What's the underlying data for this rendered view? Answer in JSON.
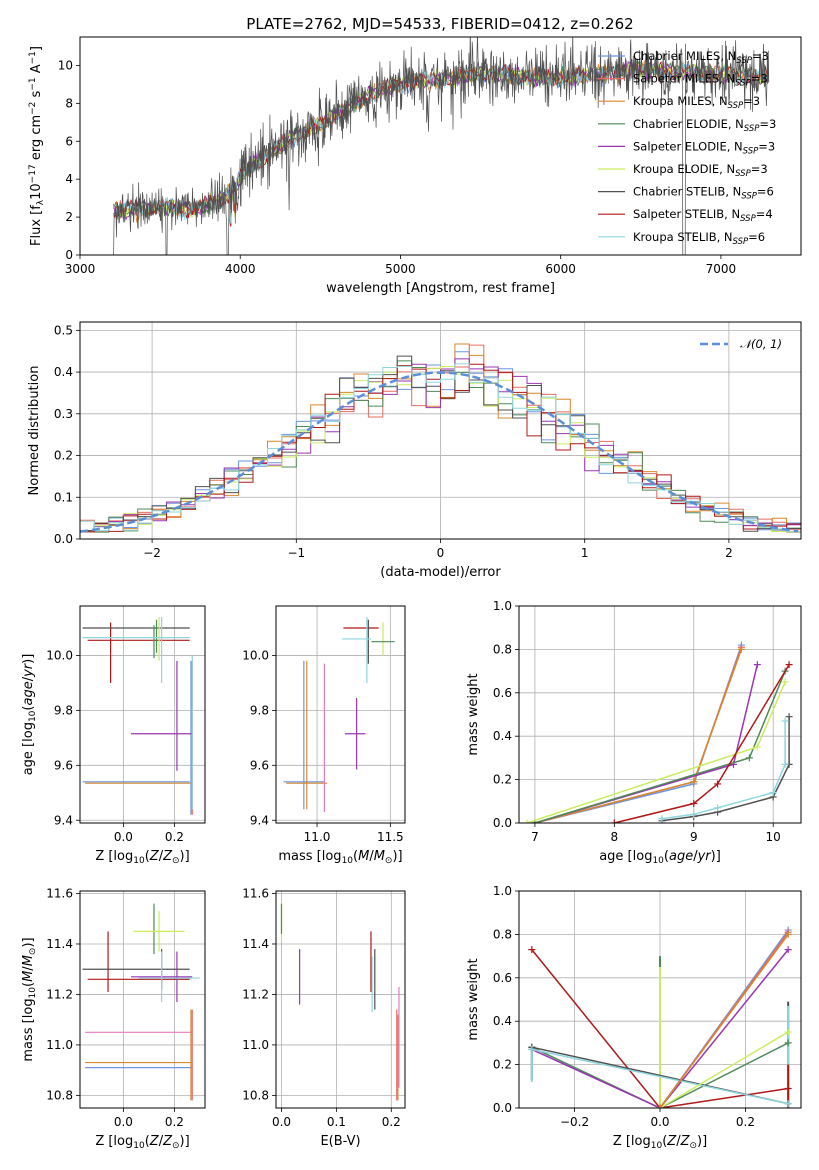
{
  "title": "PLATE=2762, MJD=54533, FIBERID=0412, z=0.262",
  "colors": {
    "Chabrier MILES": "#6b95de",
    "Salpeter MILES": "#e86b61",
    "Kroupa MILES": "#d8872d",
    "Chabrier ELODIE": "#4f8a58",
    "Salpeter ELODIE": "#9a35b3",
    "Kroupa ELODIE": "#c9ec5e",
    "Chabrier STELIB": "#505050",
    "Salpeter STELIB": "#b01818",
    "Kroupa STELIB": "#8dd6de",
    "extra": "#e87ac6",
    "gaussian": "#5b8fd8"
  },
  "chart_data": [
    {
      "id": "spectrum",
      "type": "line",
      "xlabel": "wavelength [Angstrom, rest frame]",
      "ylabel": "Flux [f_λ10^-17 erg cm^-2 s^-1 A^-1]",
      "xlim": [
        3000,
        7500
      ],
      "ylim": [
        0,
        11.5
      ],
      "xticks": [
        3000,
        4000,
        5000,
        6000,
        7000
      ],
      "yticks": [
        0,
        2,
        4,
        6,
        8,
        10
      ],
      "grid": false,
      "legend_position": "right",
      "legend": [
        {
          "label": "Chabrier MILES, N_SSP=3",
          "model": "Chabrier MILES"
        },
        {
          "label": "Salpeter MILES, N_SSP=3",
          "model": "Salpeter MILES"
        },
        {
          "label": "Kroupa MILES, N_SSP=3",
          "model": "Kroupa MILES"
        },
        {
          "label": "Chabrier ELODIE, N_SSP=3",
          "model": "Chabrier ELODIE"
        },
        {
          "label": "Salpeter ELODIE, N_SSP=3",
          "model": "Salpeter ELODIE"
        },
        {
          "label": "Kroupa ELODIE, N_SSP=3",
          "model": "Kroupa ELODIE"
        },
        {
          "label": "Chabrier STELIB, N_SSP=6",
          "model": "Chabrier STELIB"
        },
        {
          "label": "Salpeter STELIB, N_SSP=4",
          "model": "Salpeter STELIB"
        },
        {
          "label": "Kroupa STELIB, N_SSP=6",
          "model": "Kroupa STELIB"
        }
      ],
      "continuum": [
        [
          3210,
          2.3
        ],
        [
          3400,
          2.5
        ],
        [
          3550,
          2.5
        ],
        [
          3700,
          2.4
        ],
        [
          3850,
          2.8
        ],
        [
          3950,
          3.4
        ],
        [
          4050,
          4.6
        ],
        [
          4200,
          5.4
        ],
        [
          4350,
          6.3
        ],
        [
          4500,
          6.9
        ],
        [
          4700,
          7.9
        ],
        [
          4900,
          8.8
        ],
        [
          5100,
          9.2
        ],
        [
          5300,
          9.3
        ],
        [
          5500,
          9.6
        ],
        [
          5700,
          9.5
        ],
        [
          5900,
          9.3
        ],
        [
          6100,
          9.4
        ],
        [
          6300,
          9.6
        ],
        [
          6500,
          9.8
        ],
        [
          6700,
          9.7
        ],
        [
          6900,
          9.6
        ],
        [
          7100,
          9.5
        ],
        [
          7300,
          9.3
        ]
      ]
    },
    {
      "id": "residuals",
      "type": "line",
      "xlabel": "(data-model)/error",
      "ylabel": "Normed distribution",
      "xlim": [
        -2.5,
        2.5
      ],
      "ylim": [
        0,
        0.52
      ],
      "xticks": [
        -2,
        -1,
        0,
        1,
        2
      ],
      "yticks": [
        0.0,
        0.1,
        0.2,
        0.3,
        0.4,
        0.5
      ],
      "grid": true,
      "legend_position": "top-right",
      "legend_label": "N(0,1)"
    },
    {
      "id": "age_vs_Z",
      "type": "scatter",
      "xlabel": "Z [log10(Z/Z⊙)]",
      "ylabel": "age  [log10(age/yr)]",
      "xlim": [
        -0.17,
        0.32
      ],
      "ylim": [
        9.39,
        10.18
      ],
      "xticks": [
        0.0,
        0.2
      ],
      "yticks": [
        9.4,
        9.6,
        9.8,
        10.0
      ],
      "grid": true,
      "points": [
        {
          "m": "Chabrier MILES",
          "x": 0.05,
          "xerr": 0.21,
          "y": 9.54,
          "yerr": 0.0
        },
        {
          "m": "Kroupa MILES",
          "x": 0.06,
          "xerr": 0.21,
          "y": 9.535,
          "yerr": 0.0
        },
        {
          "m": "Salpeter MILES",
          "x": 0.27,
          "xerr": 0.0,
          "y": 9.7,
          "yerr": 0.28
        },
        {
          "m": "Chabrier MILES",
          "x": 0.265,
          "xerr": 0.0,
          "y": 9.7,
          "yerr": 0.28
        },
        {
          "m": "Salpeter ELODIE",
          "x": 0.21,
          "xerr": 0.0,
          "y": 9.78,
          "yerr": 0.2
        },
        {
          "m": "Salpeter ELODIE",
          "x": 0.15,
          "xerr": 0.12,
          "y": 9.715,
          "yerr": 0.0
        },
        {
          "m": "Kroupa STELIB",
          "x": 0.27,
          "xerr": 0.0,
          "y": 9.72,
          "yerr": 0.28
        },
        {
          "m": "Salpeter STELIB",
          "x": -0.05,
          "xerr": 0.0,
          "y": 10.01,
          "yerr": 0.11
        },
        {
          "m": "Salpeter STELIB",
          "x": 0.06,
          "xerr": 0.2,
          "y": 10.055,
          "yerr": 0.0
        },
        {
          "m": "Chabrier STELIB",
          "x": 0.05,
          "xerr": 0.21,
          "y": 10.1,
          "yerr": 0.0
        },
        {
          "m": "Chabrier ELODIE",
          "x": 0.12,
          "xerr": 0.0,
          "y": 10.05,
          "yerr": 0.06
        },
        {
          "m": "Kroupa ELODIE",
          "x": 0.14,
          "xerr": 0.0,
          "y": 10.06,
          "yerr": 0.08
        },
        {
          "m": "Kroupa STELIB",
          "x": 0.15,
          "xerr": 0.0,
          "y": 10.02,
          "yerr": 0.12
        },
        {
          "m": "Chabrier ELODIE",
          "x": 0.13,
          "xerr": 0.0,
          "y": 10.07,
          "yerr": 0.06
        },
        {
          "m": "Kroupa STELIB",
          "x": 0.05,
          "xerr": 0.21,
          "y": 10.065,
          "yerr": 0.0
        }
      ]
    },
    {
      "id": "age_vs_mass",
      "type": "scatter",
      "xlabel": "mass [log10(M/M⊙)]",
      "ylabel": "",
      "xlim": [
        10.72,
        11.6
      ],
      "ylim": [
        9.39,
        10.18
      ],
      "xticks": [
        11.0,
        11.5
      ],
      "yticks": [
        9.4,
        9.6,
        9.8,
        10.0
      ],
      "grid": true,
      "points": [
        {
          "m": "Chabrier MILES",
          "x": 10.91,
          "xerr": 0.14,
          "y": 9.54,
          "yerr": 0.0
        },
        {
          "m": "Chabrier MILES",
          "x": 10.91,
          "xerr": 0.0,
          "y": 9.71,
          "yerr": 0.27
        },
        {
          "m": "Kroupa MILES",
          "x": 10.93,
          "xerr": 0.0,
          "y": 9.71,
          "yerr": 0.27
        },
        {
          "m": "Kroupa MILES",
          "x": 10.93,
          "xerr": 0.14,
          "y": 9.535,
          "yerr": 0.0
        },
        {
          "m": "extra",
          "x": 11.05,
          "xerr": 0.0,
          "y": 9.7,
          "yerr": 0.27
        },
        {
          "m": "Salpeter ELODIE",
          "x": 11.26,
          "xerr": 0.07,
          "y": 9.715,
          "yerr": 0.0
        },
        {
          "m": "Salpeter ELODIE",
          "x": 11.27,
          "xerr": 0.0,
          "y": 9.715,
          "yerr": 0.13
        },
        {
          "m": "Salpeter STELIB",
          "x": 11.3,
          "xerr": 0.12,
          "y": 10.1,
          "yerr": 0.0
        },
        {
          "m": "Chabrier STELIB",
          "x": 11.35,
          "xerr": 0.0,
          "y": 10.05,
          "yerr": 0.08
        },
        {
          "m": "Kroupa STELIB",
          "x": 11.27,
          "xerr": 0.1,
          "y": 10.06,
          "yerr": 0.0
        },
        {
          "m": "Kroupa ELODIE",
          "x": 11.45,
          "xerr": 0.0,
          "y": 10.06,
          "yerr": 0.06
        },
        {
          "m": "Chabrier ELODIE",
          "x": 11.45,
          "xerr": 0.08,
          "y": 10.05,
          "yerr": 0.0
        },
        {
          "m": "Kroupa STELIB",
          "x": 11.34,
          "xerr": 0.0,
          "y": 10.02,
          "yerr": 0.12
        }
      ]
    },
    {
      "id": "massweight_vs_age",
      "type": "line",
      "xlabel": "age  [log10(age/yr)]",
      "ylabel": "mass weight",
      "xlim": [
        6.8,
        10.35
      ],
      "ylim": [
        0,
        1.0
      ],
      "xticks": [
        7,
        8,
        9,
        10
      ],
      "yticks": [
        0.0,
        0.2,
        0.4,
        0.6,
        0.8,
        1.0
      ],
      "grid": true,
      "series": [
        {
          "m": "Chabrier MILES",
          "x": [
            7.0,
            9.0,
            9.6
          ],
          "y": [
            0.0,
            0.18,
            0.82
          ]
        },
        {
          "m": "Salpeter MILES",
          "x": [
            7.0,
            9.0,
            9.6
          ],
          "y": [
            0.0,
            0.19,
            0.81
          ]
        },
        {
          "m": "Kroupa MILES",
          "x": [
            7.0,
            9.0,
            9.6
          ],
          "y": [
            0.0,
            0.19,
            0.8
          ]
        },
        {
          "m": "Salpeter ELODIE",
          "x": [
            7.0,
            9.5,
            9.8
          ],
          "y": [
            0.0,
            0.27,
            0.73
          ]
        },
        {
          "m": "Chabrier ELODIE",
          "x": [
            7.0,
            9.7,
            10.15
          ],
          "y": [
            0.0,
            0.3,
            0.7
          ]
        },
        {
          "m": "Kroupa ELODIE",
          "x": [
            6.9,
            9.8,
            10.15
          ],
          "y": [
            0.0,
            0.35,
            0.65
          ]
        },
        {
          "m": "Salpeter STELIB",
          "x": [
            8.0,
            9.0,
            9.3,
            10.2
          ],
          "y": [
            0.0,
            0.09,
            0.18,
            0.73
          ]
        },
        {
          "m": "Chabrier STELIB",
          "x": [
            8.6,
            9.0,
            9.3,
            10.0,
            10.2,
            10.2
          ],
          "y": [
            0.01,
            0.03,
            0.05,
            0.12,
            0.27,
            0.49
          ]
        },
        {
          "m": "Kroupa STELIB",
          "x": [
            8.6,
            9.0,
            9.3,
            10.0,
            10.15,
            10.15
          ],
          "y": [
            0.02,
            0.04,
            0.07,
            0.14,
            0.27,
            0.47
          ]
        }
      ]
    },
    {
      "id": "mass_vs_Z",
      "type": "scatter",
      "xlabel": "Z [log10(Z/Z⊙)]",
      "ylabel": "mass [log10(M/M⊙)]",
      "xlim": [
        -0.17,
        0.32
      ],
      "ylim": [
        10.75,
        11.61
      ],
      "xticks": [
        0.0,
        0.2
      ],
      "yticks": [
        10.8,
        11.0,
        11.2,
        11.4,
        11.6
      ],
      "grid": true,
      "points": [
        {
          "m": "Chabrier MILES",
          "x": 0.06,
          "xerr": 0.21,
          "y": 10.91,
          "yerr": 0.0
        },
        {
          "m": "Kroupa MILES",
          "x": 0.06,
          "xerr": 0.21,
          "y": 10.93,
          "yerr": 0.0
        },
        {
          "m": "extra",
          "x": 0.06,
          "xerr": 0.21,
          "y": 11.05,
          "yerr": 0.0
        },
        {
          "m": "Kroupa MILES",
          "x": 0.265,
          "xerr": 0.0,
          "y": 10.96,
          "yerr": 0.18
        },
        {
          "m": "Salpeter MILES",
          "x": 0.27,
          "xerr": 0.0,
          "y": 10.96,
          "yerr": 0.18
        },
        {
          "m": "Salpeter STELIB",
          "x": -0.06,
          "xerr": 0.0,
          "y": 11.33,
          "yerr": 0.12
        },
        {
          "m": "Salpeter STELIB",
          "x": 0.06,
          "xerr": 0.2,
          "y": 11.26,
          "yerr": 0.0
        },
        {
          "m": "Chabrier STELIB",
          "x": 0.05,
          "xerr": 0.21,
          "y": 11.3,
          "yerr": 0.0
        },
        {
          "m": "Salpeter ELODIE",
          "x": 0.15,
          "xerr": 0.12,
          "y": 11.27,
          "yerr": 0.0
        },
        {
          "m": "Salpeter ELODIE",
          "x": 0.21,
          "xerr": 0.0,
          "y": 11.27,
          "yerr": 0.1
        },
        {
          "m": "Chabrier STELIB",
          "x": 0.15,
          "xerr": 0.0,
          "y": 11.3,
          "yerr": 0.08
        },
        {
          "m": "Kroupa STELIB",
          "x": 0.15,
          "xerr": 0.0,
          "y": 11.27,
          "yerr": 0.1
        },
        {
          "m": "Chabrier ELODIE",
          "x": 0.12,
          "xerr": 0.0,
          "y": 11.46,
          "yerr": 0.1
        },
        {
          "m": "Kroupa ELODIE",
          "x": 0.14,
          "xerr": 0.1,
          "y": 11.45,
          "yerr": 0.0
        },
        {
          "m": "Kroupa ELODIE",
          "x": 0.14,
          "xerr": 0.0,
          "y": 11.45,
          "yerr": 0.08
        },
        {
          "m": "Kroupa STELIB",
          "x": 0.18,
          "xerr": 0.12,
          "y": 11.265,
          "yerr": 0.0
        }
      ]
    },
    {
      "id": "mass_vs_ebv",
      "type": "scatter",
      "xlabel": "E(B-V)",
      "ylabel": "",
      "xlim": [
        -0.01,
        0.225
      ],
      "ylim": [
        10.75,
        11.61
      ],
      "xticks": [
        0.0,
        0.1,
        0.2
      ],
      "yticks": [
        10.8,
        11.0,
        11.2,
        11.4,
        11.6
      ],
      "grid": true,
      "points": [
        {
          "m": "Kroupa ELODIE",
          "x": 0.0,
          "xerr": 0.0,
          "y": 11.49,
          "yerr": 0.08
        },
        {
          "m": "Chabrier ELODIE",
          "x": 0.0,
          "xerr": 0.0,
          "y": 11.5,
          "yerr": 0.06
        },
        {
          "m": "Salpeter ELODIE",
          "x": 0.033,
          "xerr": 0.0,
          "y": 11.27,
          "yerr": 0.11
        },
        {
          "m": "Salpeter STELIB",
          "x": 0.163,
          "xerr": 0.0,
          "y": 11.33,
          "yerr": 0.12
        },
        {
          "m": "Kroupa STELIB",
          "x": 0.165,
          "xerr": 0.0,
          "y": 11.24,
          "yerr": 0.11
        },
        {
          "m": "Chabrier STELIB",
          "x": 0.17,
          "xerr": 0.0,
          "y": 11.26,
          "yerr": 0.12
        },
        {
          "m": "Salpeter MILES",
          "x": 0.21,
          "xerr": 0.0,
          "y": 10.96,
          "yerr": 0.18
        },
        {
          "m": "Kroupa MILES",
          "x": 0.212,
          "xerr": 0.0,
          "y": 10.95,
          "yerr": 0.17
        },
        {
          "m": "extra",
          "x": 0.214,
          "xerr": 0.0,
          "y": 11.03,
          "yerr": 0.2
        }
      ]
    },
    {
      "id": "massweight_vs_Z",
      "type": "line",
      "xlabel": "Z [log10(Z/Z⊙)]",
      "ylabel": "mass weight",
      "xlim": [
        -0.33,
        0.33
      ],
      "ylim": [
        0,
        1.0
      ],
      "xticks": [
        -0.2,
        0.0,
        0.2
      ],
      "yticks": [
        0.0,
        0.2,
        0.4,
        0.6,
        0.8,
        1.0
      ],
      "grid": true,
      "series": [
        {
          "m": "Salpeter STELIB",
          "x": [
            -0.3,
            0.0,
            0.3
          ],
          "y": [
            0.73,
            0.0,
            0.09
          ]
        },
        {
          "m": "Chabrier ELODIE",
          "x": [
            -0.3,
            0.0,
            0.3
          ],
          "y": [
            0.28,
            0.0,
            0.3
          ]
        },
        {
          "m": "Salpeter ELODIE",
          "x": [
            -0.3,
            0.0,
            0.3
          ],
          "y": [
            0.27,
            0.0,
            0.73
          ]
        },
        {
          "m": "Chabrier STELIB",
          "x": [
            -0.3,
            0.3
          ],
          "y": [
            0.28,
            0.02
          ]
        },
        {
          "m": "Kroupa STELIB",
          "x": [
            -0.3,
            0.3
          ],
          "y": [
            0.27,
            0.02
          ]
        },
        {
          "m": "Kroupa ELODIE",
          "x": [
            0.0,
            0.3
          ],
          "y": [
            0.0,
            0.35
          ]
        },
        {
          "m": "Chabrier MILES",
          "x": [
            0.0,
            0.3
          ],
          "y": [
            0.0,
            0.82
          ]
        },
        {
          "m": "Salpeter MILES",
          "x": [
            0.0,
            0.3
          ],
          "y": [
            0.0,
            0.81
          ]
        },
        {
          "m": "Kroupa MILES",
          "x": [
            0.0,
            0.3
          ],
          "y": [
            0.0,
            0.8
          ]
        }
      ],
      "verticals": [
        {
          "m": "Chabrier STELIB",
          "x": -0.3,
          "y": [
            0.13,
            0.28
          ]
        },
        {
          "m": "Kroupa STELIB",
          "x": -0.3,
          "y": [
            0.12,
            0.27
          ]
        },
        {
          "m": "Chabrier ELODIE",
          "x": 0.0,
          "y": [
            0.0,
            0.7
          ]
        },
        {
          "m": "Kroupa ELODIE",
          "x": 0.0,
          "y": [
            0.0,
            0.65
          ]
        },
        {
          "m": "Chabrier STELIB",
          "x": 0.3,
          "y": [
            0.02,
            0.49
          ]
        },
        {
          "m": "Kroupa STELIB",
          "x": 0.3,
          "y": [
            0.01,
            0.47
          ]
        },
        {
          "m": "Salpeter STELIB",
          "x": 0.3,
          "y": [
            0.0,
            0.2
          ]
        }
      ]
    }
  ]
}
